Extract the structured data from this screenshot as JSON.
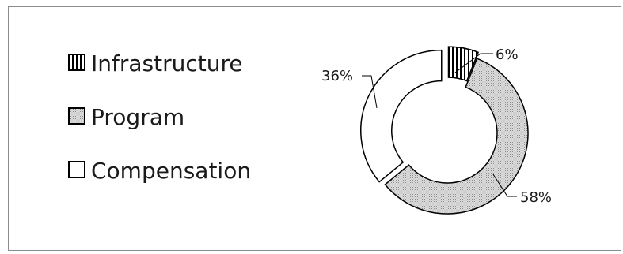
{
  "chart_data": {
    "type": "pie",
    "variant": "donut",
    "title": "",
    "legend": "left",
    "slices": [
      {
        "name": "Infrastructure",
        "value": 6,
        "label": "6%",
        "fill": "vertical-stripes"
      },
      {
        "name": "Program",
        "value": 58,
        "label": "58%",
        "fill": "dotted-gray"
      },
      {
        "name": "Compensation",
        "value": 36,
        "label": "36%",
        "fill": "white"
      }
    ],
    "exploded_slices": [
      "Infrastructure",
      "Compensation"
    ]
  },
  "colors": {
    "outline": "#000000",
    "program_fill": "#d9d9d9",
    "program_dots": "#8a8a8a",
    "border": "#8c8c8c",
    "background": "#ffffff"
  }
}
